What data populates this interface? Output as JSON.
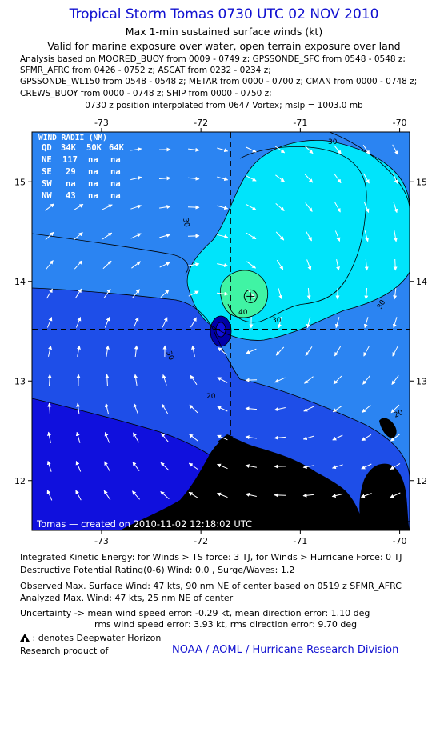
{
  "title": "Tropical Storm Tomas 0730 UTC 02 NOV 2010",
  "subtitle1": "Max 1-min sustained surface winds (kt)",
  "subtitle2": "Valid for marine exposure over water, open terrain exposure over land",
  "analysis_lines": [
    "Analysis based on MOORED_BUOY from 0009 - 0749 z; GPSSONDE_SFC from 0548 - 0548 z;",
    "SFMR_AFRC from 0426 - 0752 z; ASCAT from 0232 - 0234 z;",
    "GPSSONDE_WL150 from 0548 - 0548 z; METAR from 0000 - 0700 z; CMAN from 0000 - 0748 z;",
    "CREWS_BUOY from 0000 - 0748 z; SHIP from 0000 - 0750 z;"
  ],
  "position_note": "0730 z position interpolated from 0647 Vortex; mslp = 1003.0 mb",
  "map": {
    "lon_ticks": [
      "-73",
      "-72",
      "-71",
      "-70"
    ],
    "lat_ticks": [
      "15",
      "14",
      "13",
      "12"
    ],
    "lon_values": [
      -73,
      -72,
      -71,
      -70
    ],
    "lat_values": [
      15,
      14,
      13,
      12
    ],
    "lon_range": [
      -73.7,
      -69.9
    ],
    "lat_range": [
      11.5,
      15.5
    ],
    "center": {
      "lon": -71.7,
      "lat": 13.52
    },
    "max_wind_marker": {
      "lon": -71.5,
      "lat": 13.85
    },
    "contour_labels": [
      "30",
      "30",
      "30",
      "30",
      "30",
      "40",
      "20",
      "20",
      "10"
    ],
    "credit": "Tomas — created on 2010-11-02 12:18:02 UTC",
    "wind_radii": {
      "title": "WIND RADII (NM)",
      "header": [
        "QD",
        "34K",
        "50K",
        "64K"
      ],
      "rows": [
        [
          "NE",
          "117",
          "na",
          "na"
        ],
        [
          "SE",
          "29",
          "na",
          "na"
        ],
        [
          "SW",
          "na",
          "na",
          "na"
        ],
        [
          "NW",
          "43",
          "na",
          "na"
        ]
      ]
    },
    "colors": {
      "lt10": "#1010dd",
      "c10_20": "#1e4ee8",
      "c20_30": "#2b84f2",
      "c30_40": "#00e4fb",
      "c40_50": "#40f4a4",
      "core": "#0000a8",
      "land": "#000000"
    }
  },
  "footer": {
    "ike": "Integrated Kinetic Energy:  for Winds > TS force: 3 TJ,  for Winds > Hurricane Force: 0 TJ",
    "dpr": "Destructive Potential Rating(0-6)   Wind: 0.0 , Surge/Waves: 1.2",
    "observed": "Observed Max. Surface Wind: 47 kts, 90 nm NE of center based on 0519 z SFMR_AFRC",
    "analyzed": "Analyzed Max. Wind: 47 kts, 25 nm NE of center",
    "uncertainty1": "Uncertainty -> mean wind speed error:  -0.29 kt,   mean direction error: 1.10 deg",
    "uncertainty2": "rms wind speed error: 3.93 kt,   rms direction error: 9.70 deg",
    "deepwater": ": denotes Deepwater Horizon",
    "research": "Research product of",
    "noaa": "NOAA / AOML / Hurricane Research Division"
  }
}
